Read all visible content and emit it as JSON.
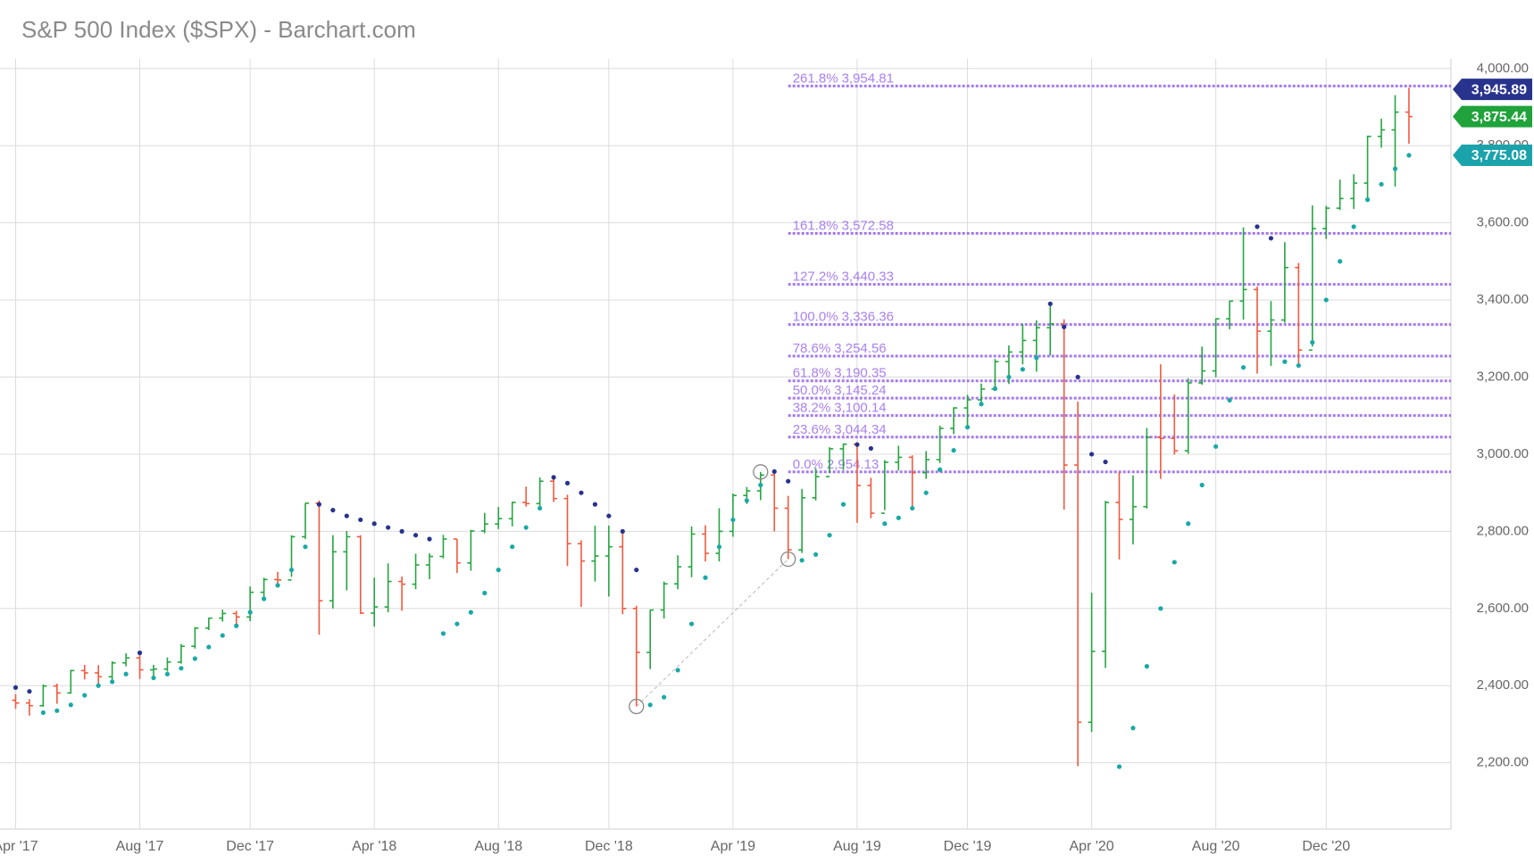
{
  "chart_data": {
    "type": "ohlc",
    "title": "S&P 500 Index ($SPX) - Barchart.com",
    "categories": [
      "Apr '17",
      null,
      null,
      null,
      null,
      null,
      null,
      null,
      null,
      "Aug '17",
      null,
      null,
      null,
      null,
      null,
      null,
      null,
      "Dec '17",
      null,
      null,
      null,
      null,
      null,
      null,
      null,
      null,
      "Apr '18",
      null,
      null,
      null,
      null,
      null,
      null,
      null,
      null,
      "Aug '18",
      null,
      null,
      null,
      null,
      null,
      null,
      null,
      "Dec '18",
      null,
      null,
      null,
      null,
      null,
      null,
      null,
      null,
      "Apr '19",
      null,
      null,
      null,
      null,
      null,
      null,
      null,
      null,
      "Aug '19",
      null,
      null,
      null,
      null,
      null,
      null,
      null,
      "Dec '19",
      null,
      null,
      null,
      null,
      null,
      null,
      null,
      null,
      "Apr '20",
      null,
      null,
      null,
      null,
      null,
      null,
      null,
      null,
      "Aug '20",
      null,
      null,
      null,
      null,
      null,
      null,
      null,
      "Dec '20",
      null,
      null,
      null,
      null,
      null,
      null
    ],
    "open": [
      2362,
      2355,
      2348,
      2399,
      2381,
      2439,
      2433,
      2423,
      2459,
      2472,
      2441,
      2443,
      2461,
      2502,
      2549,
      2575,
      2587,
      2578,
      2642,
      2675,
      2674,
      2786,
      2873,
      2620,
      2747,
      2786,
      2588,
      2604,
      2670,
      2663,
      2713,
      2735,
      2780,
      2718,
      2801,
      2819,
      2833,
      2875,
      2872,
      2930,
      2885,
      2768,
      2723,
      2736,
      2760,
      2600,
      2486,
      2596,
      2664,
      2708,
      2793,
      2743,
      2800,
      2893,
      2905,
      2946,
      2860,
      2752,
      2887,
      2942,
      3014,
      3026,
      2919,
      2847,
      2979,
      2992,
      2952,
      2986,
      3067,
      3120,
      3141,
      3169,
      3240,
      3265,
      3295,
      3328,
      3338,
      2972,
      2305,
      2489,
      2875,
      2831,
      2864,
      3044,
      3041,
      3009,
      3185,
      3216,
      3351,
      3397,
      3427,
      3319,
      3348,
      3484,
      3270,
      3585,
      3638,
      3663,
      3703,
      3824,
      3841,
      3887
    ],
    "high": [
      2378,
      2365,
      2403,
      2405,
      2441,
      2454,
      2453,
      2463,
      2484,
      2490,
      2454,
      2473,
      2508,
      2552,
      2576,
      2597,
      2594,
      2657,
      2680,
      2695,
      2790,
      2873,
      2880,
      2790,
      2801,
      2790,
      2680,
      2717,
      2683,
      2742,
      2743,
      2791,
      2780,
      2804,
      2848,
      2863,
      2877,
      2916,
      2940,
      2939,
      2895,
      2777,
      2815,
      2815,
      2800,
      2607,
      2597,
      2670,
      2738,
      2813,
      2816,
      2860,
      2898,
      2915,
      2954,
      2955,
      2892,
      2910,
      2964,
      3018,
      3028,
      3027,
      2939,
      2985,
      3022,
      2997,
      3008,
      3074,
      3122,
      3154,
      3183,
      3247,
      3282,
      3338,
      3347,
      3393,
      3350,
      3136,
      2641,
      2879,
      2954,
      2945,
      3068,
      3233,
      3155,
      3197,
      3279,
      3352,
      3398,
      3588,
      3435,
      3397,
      3550,
      3496,
      3645,
      3644,
      3712,
      3726,
      3826,
      3870,
      3931,
      3950
    ],
    "low": [
      2340,
      2322,
      2345,
      2353,
      2379,
      2416,
      2405,
      2407,
      2450,
      2417,
      2417,
      2437,
      2457,
      2496,
      2544,
      2566,
      2557,
      2567,
      2624,
      2664,
      2682,
      2780,
      2532,
      2600,
      2647,
      2586,
      2553,
      2590,
      2594,
      2650,
      2676,
      2730,
      2692,
      2698,
      2795,
      2806,
      2813,
      2864,
      2864,
      2876,
      2710,
      2604,
      2670,
      2631,
      2585,
      2346,
      2443,
      2574,
      2650,
      2681,
      2722,
      2722,
      2786,
      2871,
      2881,
      2800,
      2728,
      2744,
      2880,
      2952,
      2959,
      2822,
      2834,
      2855,
      2958,
      2855,
      2936,
      2977,
      3052,
      3070,
      3132,
      3166,
      3182,
      3233,
      3214,
      3256,
      2856,
      2191,
      2280,
      2446,
      2727,
      2766,
      2859,
      2936,
      2999,
      3001,
      3180,
      3200,
      3324,
      3349,
      3209,
      3229,
      3341,
      3234,
      3279,
      3558,
      3633,
      3636,
      3663,
      3795,
      3694,
      3805
    ],
    "close": [
      2355,
      2348,
      2399,
      2381,
      2439,
      2433,
      2423,
      2459,
      2472,
      2441,
      2443,
      2461,
      2502,
      2549,
      2575,
      2587,
      2578,
      2642,
      2675,
      2674,
      2786,
      2873,
      2620,
      2747,
      2786,
      2588,
      2604,
      2670,
      2663,
      2713,
      2735,
      2780,
      2718,
      2801,
      2819,
      2833,
      2875,
      2872,
      2930,
      2885,
      2768,
      2723,
      2736,
      2760,
      2600,
      2486,
      2596,
      2664,
      2708,
      2793,
      2743,
      2800,
      2893,
      2905,
      2946,
      2860,
      2752,
      2887,
      2942,
      3014,
      3026,
      2919,
      2847,
      2979,
      2992,
      2952,
      2986,
      3067,
      3120,
      3141,
      3169,
      3240,
      3265,
      3295,
      3328,
      3338,
      2972,
      2305,
      2489,
      2875,
      2831,
      2864,
      3044,
      3041,
      3009,
      3185,
      3216,
      3351,
      3397,
      3427,
      3319,
      3348,
      3484,
      3270,
      3585,
      3638,
      3663,
      3703,
      3824,
      3841,
      3887,
      3875.44
    ],
    "sar": [
      2395,
      2385,
      2330,
      2335,
      2350,
      2375,
      2400,
      2410,
      2430,
      2485,
      2420,
      2430,
      2445,
      2470,
      2500,
      2530,
      2555,
      2590,
      2625,
      2660,
      2700,
      2760,
      2870,
      2855,
      2840,
      2830,
      2820,
      2810,
      2800,
      2790,
      2780,
      2535,
      2560,
      2590,
      2640,
      2700,
      2760,
      2810,
      2860,
      2940,
      2925,
      2900,
      2870,
      2840,
      2800,
      2700,
      2350,
      2370,
      2440,
      2560,
      2680,
      2760,
      2830,
      2880,
      2920,
      2955,
      2930,
      2725,
      2740,
      2790,
      2870,
      3025,
      3015,
      2820,
      2835,
      2860,
      2900,
      2960,
      3010,
      3070,
      3130,
      3170,
      3200,
      3220,
      3250,
      3390,
      3330,
      3200,
      3000,
      2980,
      2190,
      2290,
      2450,
      2600,
      2720,
      2820,
      2920,
      3020,
      3140,
      3225,
      3590,
      3560,
      3240,
      3230,
      3290,
      3400,
      3500,
      3590,
      3660,
      3700,
      3740,
      3775
    ],
    "up_color": "#26a541",
    "down_color": "#f15a3e",
    "sar_up_color": "#19a9a6",
    "sar_down_color": "#27338c",
    "fib_color": "#9b6bf0",
    "fib_levels": [
      {
        "label": "261.8%",
        "value": 3954.81,
        "value_label": "3,954.81"
      },
      {
        "label": "161.8%",
        "value": 3572.58,
        "value_label": "3,572.58"
      },
      {
        "label": "127.2%",
        "value": 3440.33,
        "value_label": "3,440.33"
      },
      {
        "label": "100.0%",
        "value": 3336.36,
        "value_label": "3,336.36"
      },
      {
        "label": "78.6%",
        "value": 3254.56,
        "value_label": "3,254.56"
      },
      {
        "label": "61.8%",
        "value": 3190.35,
        "value_label": "3,190.35"
      },
      {
        "label": "50.0%",
        "value": 3145.24,
        "value_label": "3,145.24"
      },
      {
        "label": "38.2%",
        "value": 3100.14,
        "value_label": "3,100.14"
      },
      {
        "label": "23.6%",
        "value": 3044.34,
        "value_label": "3,044.34"
      },
      {
        "label": "0.0%",
        "value": 2954.13,
        "value_label": "2,954.13"
      }
    ],
    "price_badges": [
      {
        "value": 3945.89,
        "label": "3,945.89",
        "color": "#27338c"
      },
      {
        "value": 3875.44,
        "label": "3,875.44",
        "color": "#1fa33a"
      },
      {
        "value": 3775.08,
        "label": "3,775.08",
        "color": "#1ba3ab"
      }
    ],
    "ylim": [
      2028,
      4025
    ],
    "yticks": [
      {
        "value": 2200,
        "label": "2,200.00"
      },
      {
        "value": 2400,
        "label": "2,400.00"
      },
      {
        "value": 2600,
        "label": "2,600.00"
      },
      {
        "value": 2800,
        "label": "2,800.00"
      },
      {
        "value": 3000,
        "label": "3,000.00"
      },
      {
        "value": 3200,
        "label": "3,200.00"
      },
      {
        "value": 3400,
        "label": "3,400.00"
      },
      {
        "value": 3600,
        "label": "3,600.00"
      },
      {
        "value": 3800,
        "label": "3,800.00"
      },
      {
        "value": 4000,
        "label": "4,000.00"
      }
    ],
    "grid": true
  }
}
